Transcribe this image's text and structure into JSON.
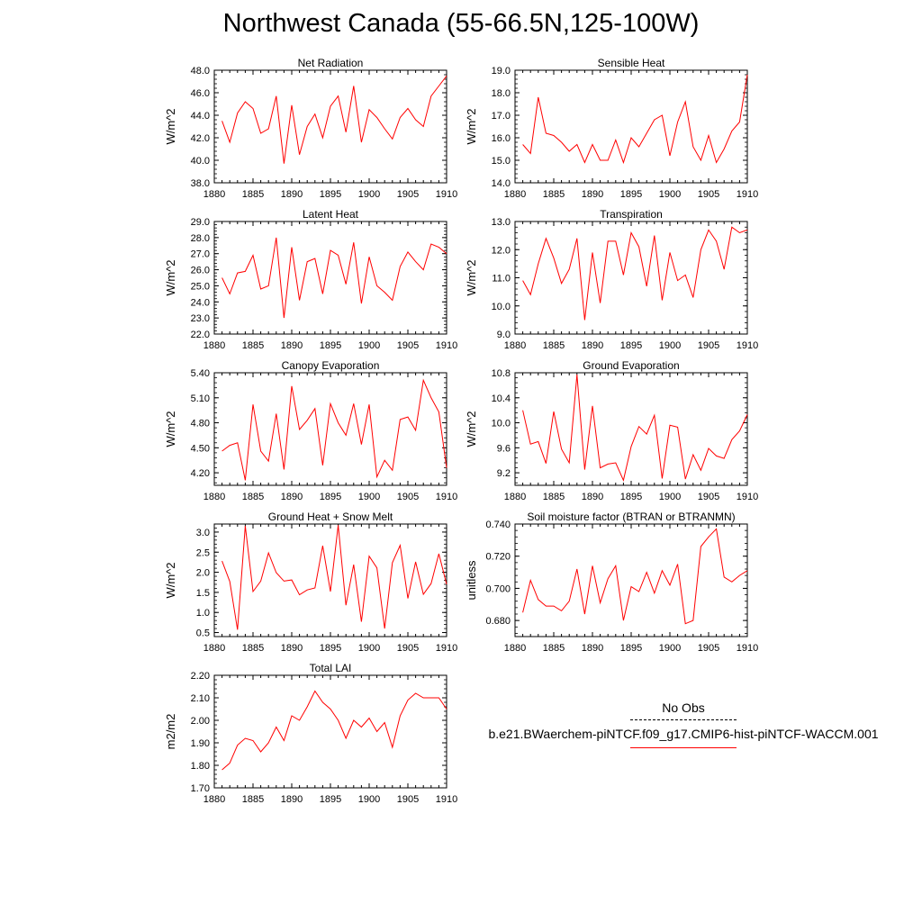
{
  "title": "Northwest Canada (55-66.5N,125-100W)",
  "colors": {
    "model_line": "#ff0000",
    "obs_line": "#000000",
    "axis": "#000000"
  },
  "legend": {
    "obs_label": "No Obs",
    "model_label": "b.e21.BWaerchem-piNTCF.f09_g17.CMIP6-hist-piNTCF-WACCM.001"
  },
  "chart_data": [
    {
      "type": "line",
      "title": "Net Radiation",
      "ylabel": "W/m^2",
      "xlim": [
        1880,
        1910
      ],
      "ylim": [
        38.0,
        48.0
      ],
      "xticks": [
        1880,
        1885,
        1890,
        1895,
        1900,
        1905,
        1910
      ],
      "yticks": [
        38.0,
        40.0,
        42.0,
        44.0,
        46.0,
        48.0
      ],
      "ydec": 1,
      "x": [
        1881,
        1882,
        1883,
        1884,
        1885,
        1886,
        1887,
        1888,
        1889,
        1890,
        1891,
        1892,
        1893,
        1894,
        1895,
        1896,
        1897,
        1898,
        1899,
        1900,
        1901,
        1902,
        1903,
        1904,
        1905,
        1906,
        1907,
        1908,
        1909,
        1910
      ],
      "series": [
        {
          "values": [
            43.5,
            41.6,
            44.2,
            45.2,
            44.6,
            42.4,
            42.8,
            45.7,
            39.7,
            44.9,
            40.5,
            43.0,
            44.1,
            42.0,
            44.8,
            45.7,
            42.5,
            46.6,
            41.6,
            44.5,
            43.8,
            42.8,
            41.9,
            43.8,
            44.6,
            43.6,
            43.0,
            45.7,
            46.6,
            47.5
          ]
        }
      ]
    },
    {
      "type": "line",
      "title": "Sensible Heat",
      "ylabel": "W/m^2",
      "xlim": [
        1880,
        1910
      ],
      "ylim": [
        14.0,
        19.0
      ],
      "xticks": [
        1880,
        1885,
        1890,
        1895,
        1900,
        1905,
        1910
      ],
      "yticks": [
        14.0,
        15.0,
        16.0,
        17.0,
        18.0,
        19.0
      ],
      "ydec": 1,
      "x": [
        1881,
        1882,
        1883,
        1884,
        1885,
        1886,
        1887,
        1888,
        1889,
        1890,
        1891,
        1892,
        1893,
        1894,
        1895,
        1896,
        1897,
        1898,
        1899,
        1900,
        1901,
        1902,
        1903,
        1904,
        1905,
        1906,
        1907,
        1908,
        1909,
        1910
      ],
      "series": [
        {
          "values": [
            15.7,
            15.3,
            17.8,
            16.2,
            16.1,
            15.8,
            15.4,
            15.7,
            14.9,
            15.7,
            15.0,
            15.0,
            15.9,
            14.9,
            16.0,
            15.6,
            16.2,
            16.8,
            17.0,
            15.2,
            16.7,
            17.6,
            15.6,
            15.0,
            16.1,
            14.9,
            15.5,
            16.3,
            16.7,
            18.8
          ]
        }
      ]
    },
    {
      "type": "line",
      "title": "Latent Heat",
      "ylabel": "W/m^2",
      "xlim": [
        1880,
        1910
      ],
      "ylim": [
        22.0,
        29.0
      ],
      "xticks": [
        1880,
        1885,
        1890,
        1895,
        1900,
        1905,
        1910
      ],
      "yticks": [
        22.0,
        23.0,
        24.0,
        25.0,
        26.0,
        27.0,
        28.0,
        29.0
      ],
      "ydec": 1,
      "x": [
        1881,
        1882,
        1883,
        1884,
        1885,
        1886,
        1887,
        1888,
        1889,
        1890,
        1891,
        1892,
        1893,
        1894,
        1895,
        1896,
        1897,
        1898,
        1899,
        1900,
        1901,
        1902,
        1903,
        1904,
        1905,
        1906,
        1907,
        1908,
        1909,
        1910
      ],
      "series": [
        {
          "values": [
            25.5,
            24.5,
            25.8,
            25.9,
            26.9,
            24.8,
            25.0,
            28.0,
            23.0,
            27.4,
            24.1,
            26.5,
            26.7,
            24.5,
            27.2,
            26.9,
            25.1,
            27.7,
            23.9,
            26.8,
            25.0,
            24.6,
            24.1,
            26.2,
            27.1,
            26.5,
            26.0,
            27.6,
            27.4,
            27.0
          ]
        }
      ]
    },
    {
      "type": "line",
      "title": "Transpiration",
      "ylabel": "W/m^2",
      "xlim": [
        1880,
        1910
      ],
      "ylim": [
        9.0,
        13.0
      ],
      "xticks": [
        1880,
        1885,
        1890,
        1895,
        1900,
        1905,
        1910
      ],
      "yticks": [
        9.0,
        10.0,
        11.0,
        12.0,
        13.0
      ],
      "ydec": 1,
      "x": [
        1881,
        1882,
        1883,
        1884,
        1885,
        1886,
        1887,
        1888,
        1889,
        1890,
        1891,
        1892,
        1893,
        1894,
        1895,
        1896,
        1897,
        1898,
        1899,
        1900,
        1901,
        1902,
        1903,
        1904,
        1905,
        1906,
        1907,
        1908,
        1909,
        1910
      ],
      "series": [
        {
          "values": [
            10.9,
            10.4,
            11.5,
            12.4,
            11.7,
            10.8,
            11.3,
            12.4,
            9.5,
            11.9,
            10.1,
            12.3,
            12.3,
            11.1,
            12.6,
            12.1,
            10.7,
            12.5,
            10.2,
            11.9,
            10.9,
            11.1,
            10.3,
            12.0,
            12.7,
            12.3,
            11.3,
            12.8,
            12.6,
            12.7
          ]
        }
      ]
    },
    {
      "type": "line",
      "title": "Canopy Evaporation",
      "ylabel": "W/m^2",
      "xlim": [
        1880,
        1910
      ],
      "ylim": [
        4.05,
        5.4
      ],
      "xticks": [
        1880,
        1885,
        1890,
        1895,
        1900,
        1905,
        1910
      ],
      "yticks": [
        4.2,
        4.5,
        4.8,
        5.1,
        5.4
      ],
      "ydec": 2,
      "x": [
        1881,
        1882,
        1883,
        1884,
        1885,
        1886,
        1887,
        1888,
        1889,
        1890,
        1891,
        1892,
        1893,
        1894,
        1895,
        1896,
        1897,
        1898,
        1899,
        1900,
        1901,
        1902,
        1903,
        1904,
        1905,
        1906,
        1907,
        1908,
        1909,
        1910
      ],
      "series": [
        {
          "values": [
            4.46,
            4.53,
            4.56,
            4.11,
            5.02,
            4.46,
            4.34,
            4.91,
            4.24,
            5.24,
            4.72,
            4.83,
            4.97,
            4.29,
            5.03,
            4.8,
            4.65,
            5.03,
            4.54,
            5.02,
            4.15,
            4.35,
            4.23,
            4.84,
            4.87,
            4.71,
            5.31,
            5.1,
            4.93,
            4.26
          ]
        }
      ]
    },
    {
      "type": "line",
      "title": "Ground Evaporation",
      "ylabel": "W/m^2",
      "xlim": [
        1880,
        1910
      ],
      "ylim": [
        9.0,
        10.8
      ],
      "xticks": [
        1880,
        1885,
        1890,
        1895,
        1900,
        1905,
        1910
      ],
      "yticks": [
        9.2,
        9.6,
        10.0,
        10.4,
        10.8
      ],
      "ydec": 1,
      "x": [
        1881,
        1882,
        1883,
        1884,
        1885,
        1886,
        1887,
        1888,
        1889,
        1890,
        1891,
        1892,
        1893,
        1894,
        1895,
        1896,
        1897,
        1898,
        1899,
        1900,
        1901,
        1902,
        1903,
        1904,
        1905,
        1906,
        1907,
        1908,
        1909,
        1910
      ],
      "series": [
        {
          "values": [
            10.2,
            9.66,
            9.7,
            9.35,
            10.18,
            9.58,
            9.36,
            10.77,
            9.25,
            10.27,
            9.28,
            9.34,
            9.36,
            9.08,
            9.62,
            9.94,
            9.82,
            10.12,
            9.11,
            9.96,
            9.93,
            9.1,
            9.49,
            9.24,
            9.59,
            9.47,
            9.43,
            9.73,
            9.87,
            10.13
          ]
        }
      ]
    },
    {
      "type": "line",
      "title": "Ground Heat + Snow Melt",
      "ylabel": "W/m^2",
      "xlim": [
        1880,
        1910
      ],
      "ylim": [
        0.4,
        3.2
      ],
      "xticks": [
        1880,
        1885,
        1890,
        1895,
        1900,
        1905,
        1910
      ],
      "yticks": [
        0.5,
        1.0,
        1.5,
        2.0,
        2.5,
        3.0
      ],
      "ydec": 1,
      "x": [
        1881,
        1882,
        1883,
        1884,
        1885,
        1886,
        1887,
        1888,
        1889,
        1890,
        1891,
        1892,
        1893,
        1894,
        1895,
        1896,
        1897,
        1898,
        1899,
        1900,
        1901,
        1902,
        1903,
        1904,
        1905,
        1906,
        1907,
        1908,
        1909,
        1910
      ],
      "series": [
        {
          "values": [
            2.28,
            1.77,
            0.57,
            3.15,
            1.52,
            1.78,
            2.48,
            1.99,
            1.78,
            1.81,
            1.44,
            1.56,
            1.61,
            2.66,
            1.52,
            3.17,
            1.18,
            2.19,
            0.77,
            2.4,
            2.11,
            0.6,
            2.24,
            2.67,
            1.35,
            2.26,
            1.45,
            1.72,
            2.46,
            1.7
          ]
        }
      ]
    },
    {
      "type": "line",
      "title": "Soil moisture factor (BTRAN or BTRANMN)",
      "ylabel": "unitless",
      "xlim": [
        1880,
        1910
      ],
      "ylim": [
        0.67,
        0.74
      ],
      "xticks": [
        1880,
        1885,
        1890,
        1895,
        1900,
        1905,
        1910
      ],
      "yticks": [
        0.68,
        0.7,
        0.72,
        0.74
      ],
      "ydec": 3,
      "x": [
        1881,
        1882,
        1883,
        1884,
        1885,
        1886,
        1887,
        1888,
        1889,
        1890,
        1891,
        1892,
        1893,
        1894,
        1895,
        1896,
        1897,
        1898,
        1899,
        1900,
        1901,
        1902,
        1903,
        1904,
        1905,
        1906,
        1907,
        1908,
        1909,
        1910
      ],
      "series": [
        {
          "values": [
            0.685,
            0.705,
            0.693,
            0.689,
            0.689,
            0.686,
            0.692,
            0.712,
            0.684,
            0.714,
            0.691,
            0.706,
            0.714,
            0.68,
            0.701,
            0.698,
            0.71,
            0.697,
            0.711,
            0.702,
            0.715,
            0.678,
            0.68,
            0.726,
            0.732,
            0.737,
            0.707,
            0.704,
            0.708,
            0.711
          ]
        }
      ]
    },
    {
      "type": "line",
      "title": "Total LAI",
      "ylabel": "m2/m2",
      "xlim": [
        1880,
        1910
      ],
      "ylim": [
        1.7,
        2.2
      ],
      "xticks": [
        1880,
        1885,
        1890,
        1895,
        1900,
        1905,
        1910
      ],
      "yticks": [
        1.7,
        1.8,
        1.9,
        2.0,
        2.1,
        2.2
      ],
      "ydec": 2,
      "x": [
        1881,
        1882,
        1883,
        1884,
        1885,
        1886,
        1887,
        1888,
        1889,
        1890,
        1891,
        1892,
        1893,
        1894,
        1895,
        1896,
        1897,
        1898,
        1899,
        1900,
        1901,
        1902,
        1903,
        1904,
        1905,
        1906,
        1907,
        1908,
        1909,
        1910
      ],
      "series": [
        {
          "values": [
            1.78,
            1.81,
            1.89,
            1.92,
            1.91,
            1.86,
            1.9,
            1.97,
            1.91,
            2.02,
            2.0,
            2.06,
            2.13,
            2.08,
            2.05,
            2.0,
            1.92,
            2.0,
            1.97,
            2.01,
            1.95,
            1.99,
            1.88,
            2.02,
            2.09,
            2.12,
            2.1,
            2.1,
            2.1,
            2.05
          ]
        }
      ]
    }
  ]
}
